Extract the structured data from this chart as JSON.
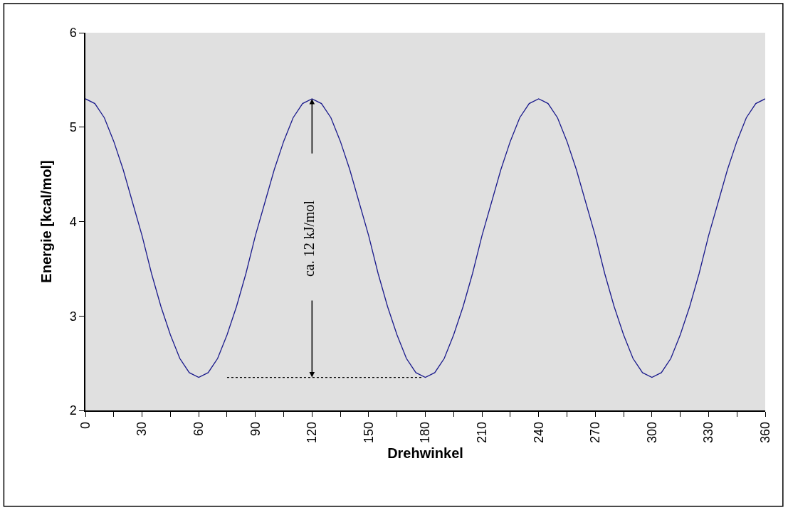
{
  "chart_data": {
    "type": "line",
    "xlabel": "Drehwinkel",
    "ylabel": "Energie [kcal/mol]",
    "x": [
      0,
      5,
      10,
      15,
      20,
      25,
      30,
      35,
      40,
      45,
      50,
      55,
      60,
      65,
      70,
      75,
      80,
      85,
      90,
      95,
      100,
      105,
      110,
      115,
      120,
      125,
      130,
      135,
      140,
      145,
      150,
      155,
      160,
      165,
      170,
      175,
      180,
      185,
      190,
      195,
      200,
      205,
      210,
      215,
      220,
      225,
      230,
      235,
      240,
      245,
      250,
      255,
      260,
      265,
      270,
      275,
      280,
      285,
      290,
      295,
      300,
      305,
      310,
      315,
      320,
      325,
      330,
      335,
      340,
      345,
      350,
      355,
      360
    ],
    "series": [
      {
        "color": "#1a1a8c",
        "values": [
          5.3,
          5.25,
          5.1,
          4.85,
          4.55,
          4.2,
          3.85,
          3.45,
          3.1,
          2.8,
          2.55,
          2.4,
          2.35,
          2.4,
          2.55,
          2.8,
          3.1,
          3.45,
          3.85,
          4.2,
          4.55,
          4.85,
          5.1,
          5.25,
          5.3,
          5.25,
          5.1,
          4.85,
          4.55,
          4.2,
          3.85,
          3.45,
          3.1,
          2.8,
          2.55,
          2.4,
          2.35,
          2.4,
          2.55,
          2.8,
          3.1,
          3.45,
          3.85,
          4.2,
          4.55,
          4.85,
          5.1,
          5.25,
          5.3,
          5.25,
          5.1,
          4.85,
          4.55,
          4.2,
          3.85,
          3.45,
          3.1,
          2.8,
          2.55,
          2.4,
          2.35,
          2.4,
          2.55,
          2.8,
          3.1,
          3.45,
          3.85,
          4.2,
          4.55,
          4.85,
          5.1,
          5.25,
          5.3
        ]
      },
      {
        "type": "line",
        "color": "#000000",
        "line_style": "dotted",
        "x": [
          75,
          178
        ],
        "values": [
          2.35,
          2.35
        ]
      }
    ],
    "annotations": [
      "ca. 12 kJ/mol"
    ],
    "xlim": [
      0,
      360
    ],
    "ylim": [
      2,
      6
    ],
    "xticks": [
      0,
      {
        "value": 15,
        "label": null
      },
      30,
      {
        "value": 45,
        "label": null
      },
      60,
      {
        "value": 75,
        "label": null
      },
      90,
      {
        "value": 105,
        "label": null
      },
      120,
      {
        "value": 135,
        "label": null
      },
      150,
      {
        "value": 165,
        "label": null
      },
      180,
      {
        "value": 195,
        "label": null
      },
      210,
      {
        "value": 225,
        "label": null
      },
      240,
      {
        "value": 255,
        "label": null
      },
      270,
      {
        "value": 285,
        "label": null
      },
      300,
      {
        "value": 315,
        "label": null
      },
      330,
      {
        "value": 345,
        "label": null
      },
      360
    ],
    "yticks": [
      2,
      3,
      4,
      5,
      6
    ],
    "grid": false,
    "legend": false,
    "marker": "none",
    "line_style": "solid"
  }
}
